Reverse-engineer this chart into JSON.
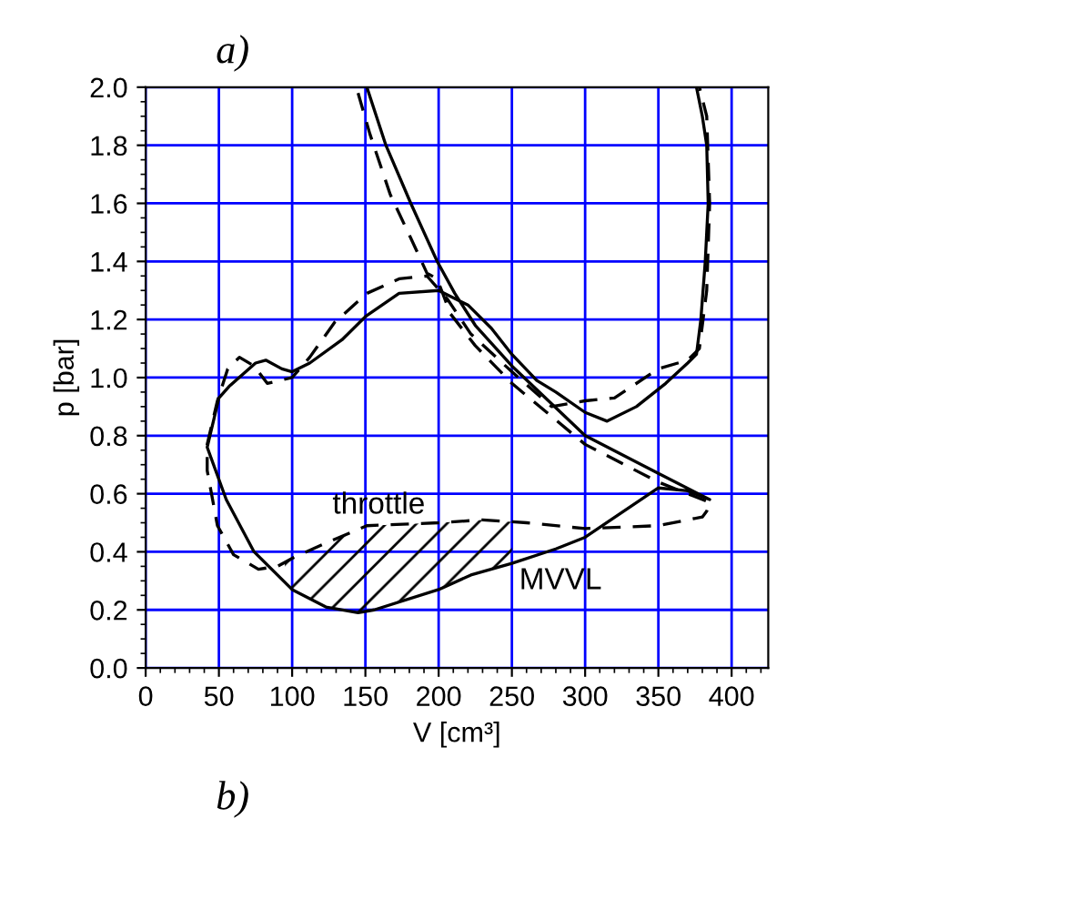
{
  "chart_data": {
    "type": "line",
    "title": "a)",
    "xlabel": "V [cm³]",
    "ylabel": "p [bar]",
    "xlim": [
      0,
      425
    ],
    "ylim": [
      0,
      2.0
    ],
    "xticks": [
      0,
      50,
      100,
      150,
      200,
      250,
      300,
      350,
      400
    ],
    "yticks": [
      {
        "value": 0,
        "label": "0.0"
      },
      0.2,
      0.4,
      0.6,
      0.8,
      {
        "value": 1,
        "label": "1.0"
      },
      1.2,
      1.4,
      1.6,
      1.8,
      {
        "value": 2,
        "label": "2.0"
      }
    ],
    "grid": true,
    "marker": "none",
    "series": [
      {
        "color": "#000000",
        "line_style": "solid",
        "x": [
          151,
          164,
          181,
          199,
          211,
          225,
          250,
          300,
          350,
          385,
          370,
          350,
          300,
          280,
          250,
          222,
          200,
          156,
          145,
          123,
          100,
          74,
          55,
          42,
          50,
          57,
          75,
          82,
          93,
          100,
          112,
          134,
          150,
          173,
          200,
          220,
          236,
          250,
          267,
          280,
          300,
          315,
          335,
          355,
          370,
          376,
          379,
          382,
          384,
          383,
          380,
          376
        ],
        "values": [
          2.0,
          1.8,
          1.6,
          1.4,
          1.29,
          1.18,
          1.04,
          0.8,
          0.67,
          0.58,
          0.61,
          0.62,
          0.45,
          0.41,
          0.36,
          0.32,
          0.27,
          0.2,
          0.19,
          0.21,
          0.27,
          0.4,
          0.58,
          0.76,
          0.93,
          0.97,
          1.05,
          1.06,
          1.03,
          1.02,
          1.05,
          1.13,
          1.21,
          1.29,
          1.3,
          1.25,
          1.17,
          1.08,
          0.99,
          0.95,
          0.88,
          0.85,
          0.9,
          0.98,
          1.05,
          1.08,
          1.2,
          1.4,
          1.6,
          1.8,
          1.9,
          2.0
        ]
      },
      {
        "color": "#000000",
        "line_style": "dashed",
        "x": [
          145,
          153,
          167,
          181,
          192,
          199,
          208,
          225,
          250,
          300,
          350,
          385,
          383,
          380,
          350,
          300,
          260,
          230,
          200,
          151,
          123,
          101,
          90,
          77,
          60,
          49,
          42,
          42,
          49,
          56,
          64,
          74,
          83,
          100,
          112,
          129,
          151,
          173,
          192,
          206,
          222,
          250,
          277,
          300,
          320,
          350,
          370,
          378,
          383,
          385,
          383,
          378
        ],
        "values": [
          1.98,
          1.84,
          1.63,
          1.48,
          1.36,
          1.34,
          1.22,
          1.11,
          0.98,
          0.77,
          0.64,
          0.57,
          0.54,
          0.52,
          0.49,
          0.48,
          0.5,
          0.51,
          0.5,
          0.49,
          0.43,
          0.38,
          0.35,
          0.34,
          0.39,
          0.49,
          0.68,
          0.77,
          0.92,
          1.03,
          1.07,
          1.04,
          0.98,
          1.0,
          1.07,
          1.19,
          1.29,
          1.34,
          1.35,
          1.27,
          1.15,
          1.02,
          0.9,
          0.92,
          0.93,
          1.03,
          1.06,
          1.1,
          1.3,
          1.6,
          1.9,
          2.0
        ]
      }
    ],
    "annotations": [
      "throttle",
      "MVVL",
      "b)"
    ]
  }
}
